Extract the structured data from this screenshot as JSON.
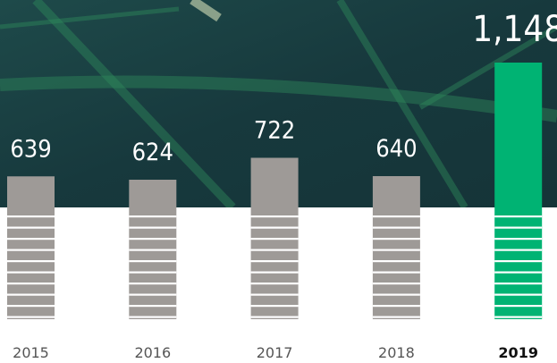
{
  "chart_data": {
    "type": "bar",
    "categories": [
      "2015",
      "2016",
      "2017",
      "2018",
      "2019"
    ],
    "values": [
      639,
      624,
      722,
      640,
      1148
    ],
    "value_labels": [
      "639",
      "624",
      "722",
      "640",
      "1,148"
    ],
    "colors": [
      "#9e9a97",
      "#9e9a97",
      "#9e9a97",
      "#9e9a97",
      "#00b373"
    ]
  }
}
